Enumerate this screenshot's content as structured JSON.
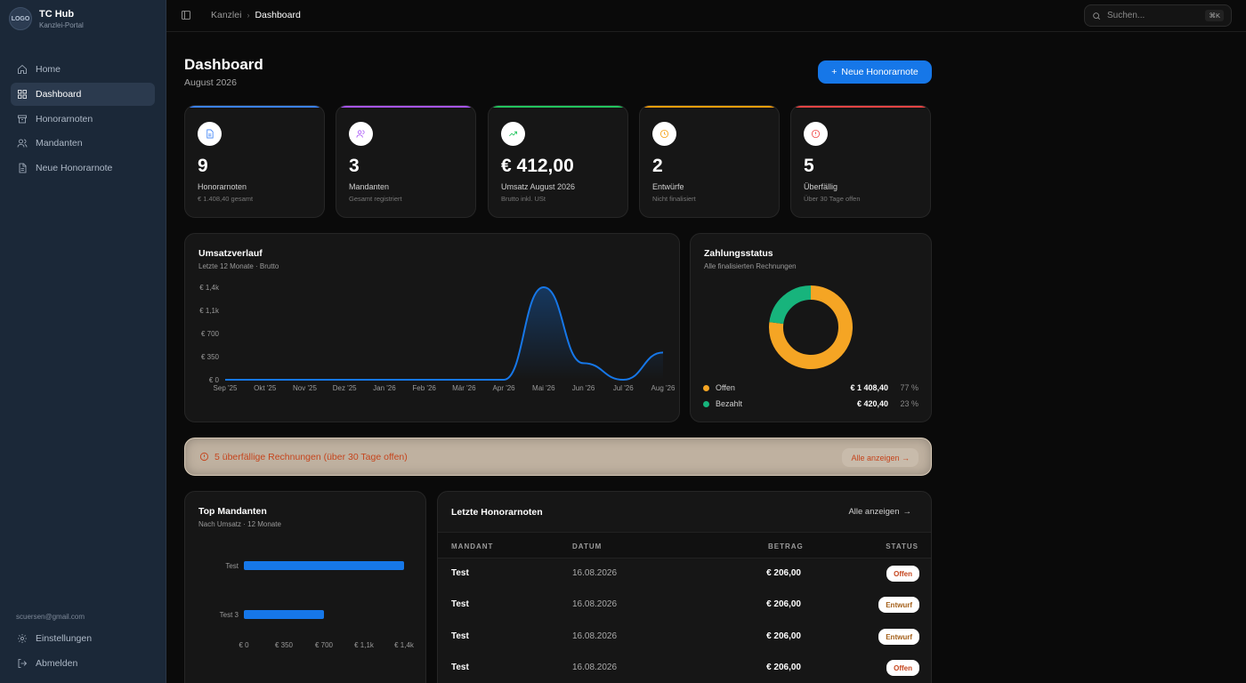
{
  "brand": {
    "logo_text": "LOGO",
    "title": "TC Hub",
    "subtitle": "Kanzlei-Portal"
  },
  "sidebar": {
    "items": [
      {
        "label": "Home",
        "icon": "home-icon"
      },
      {
        "label": "Dashboard",
        "icon": "grid-icon",
        "active": true
      },
      {
        "label": "Honorarnoten",
        "icon": "archive-icon"
      },
      {
        "label": "Mandanten",
        "icon": "users-icon"
      },
      {
        "label": "Neue Honorarnote",
        "icon": "file-icon"
      }
    ],
    "user_email": "scuersen@gmail.com",
    "bottom_items": [
      {
        "label": "Einstellungen",
        "icon": "gear-icon"
      },
      {
        "label": "Abmelden",
        "icon": "logout-icon"
      }
    ]
  },
  "topbar": {
    "breadcrumb": [
      "Kanzlei",
      "Dashboard"
    ],
    "search_placeholder": "Suchen...",
    "search_shortcut": "⌘K"
  },
  "header": {
    "title": "Dashboard",
    "subtitle": "August 2026",
    "new_button": "Neue Honorarnote"
  },
  "stats": [
    {
      "value": "9",
      "label": "Honorarnoten",
      "hint": "€ 1.408,40 gesamt",
      "color": "#3b82f6",
      "icon": "document-icon"
    },
    {
      "value": "3",
      "label": "Mandanten",
      "hint": "Gesamt registriert",
      "color": "#a855f7",
      "icon": "users-icon"
    },
    {
      "value": "€ 412,00",
      "label": "Umsatz August 2026",
      "hint": "Brutto inkl. USt",
      "color": "#22c55e",
      "icon": "trending-up-icon"
    },
    {
      "value": "2",
      "label": "Entwürfe",
      "hint": "Nicht finalisiert",
      "color": "#f59e0b",
      "icon": "clock-icon"
    },
    {
      "value": "5",
      "label": "Überfällig",
      "hint": "Über 30 Tage offen",
      "color": "#ef4444",
      "icon": "alert-circle-icon"
    }
  ],
  "revenue": {
    "title": "Umsatzverlauf",
    "subtitle": "Letzte 12 Monate · Brutto"
  },
  "chart_data": [
    {
      "type": "area",
      "title": "Umsatzverlauf",
      "categories": [
        "Sep '25",
        "Okt '25",
        "Nov '25",
        "Dez '25",
        "Jan '26",
        "Feb '26",
        "Mär '26",
        "Apr '26",
        "Mai '26",
        "Jun '26",
        "Jul '26",
        "Aug '26"
      ],
      "values": [
        0,
        0,
        0,
        0,
        0,
        0,
        0,
        0,
        1400,
        250,
        0,
        412
      ],
      "yticks": [
        "€ 0",
        "€ 350",
        "€ 700",
        "€ 1,1k",
        "€ 1,4k"
      ],
      "ylim": [
        0,
        1400
      ],
      "color": "#1677e8"
    },
    {
      "type": "pie",
      "title": "Zahlungsstatus",
      "slices": [
        {
          "name": "Offen",
          "value": 1408.4,
          "amount": "€ 1 408,40",
          "pct": "77 %",
          "color": "#f5a524"
        },
        {
          "name": "Bezahlt",
          "value": 420.4,
          "amount": "€ 420,40",
          "pct": "23 %",
          "color": "#17b47c"
        }
      ]
    },
    {
      "type": "bar",
      "title": "Top Mandanten",
      "categories": [
        "Test",
        "Test 3"
      ],
      "values": [
        1400,
        700
      ],
      "xticks": [
        "€ 0",
        "€ 350",
        "€ 700",
        "€ 1,1k",
        "€ 1,4k"
      ],
      "xlim": [
        0,
        1400
      ],
      "color": "#1677e8"
    }
  ],
  "payment": {
    "title": "Zahlungsstatus",
    "subtitle": "Alle finalisierten Rechnungen"
  },
  "alert": {
    "text": "5 überfällige Rechnungen (über 30 Tage offen)",
    "button": "Alle anzeigen →"
  },
  "top_clients": {
    "title": "Top Mandanten",
    "subtitle": "Nach Umsatz · 12 Monate"
  },
  "recent": {
    "title": "Letzte Honorarnoten",
    "link": "Alle anzeigen",
    "columns": [
      "MANDANT",
      "DATUM",
      "BETRAG",
      "STATUS"
    ],
    "rows": [
      {
        "client": "Test",
        "date": "16.08.2026",
        "amount": "€ 206,00",
        "status": "Offen"
      },
      {
        "client": "Test",
        "date": "16.08.2026",
        "amount": "€ 206,00",
        "status": "Entwurf"
      },
      {
        "client": "Test",
        "date": "16.08.2026",
        "amount": "€ 206,00",
        "status": "Entwurf"
      },
      {
        "client": "Test",
        "date": "16.08.2026",
        "amount": "€ 206,00",
        "status": "Offen"
      }
    ]
  }
}
